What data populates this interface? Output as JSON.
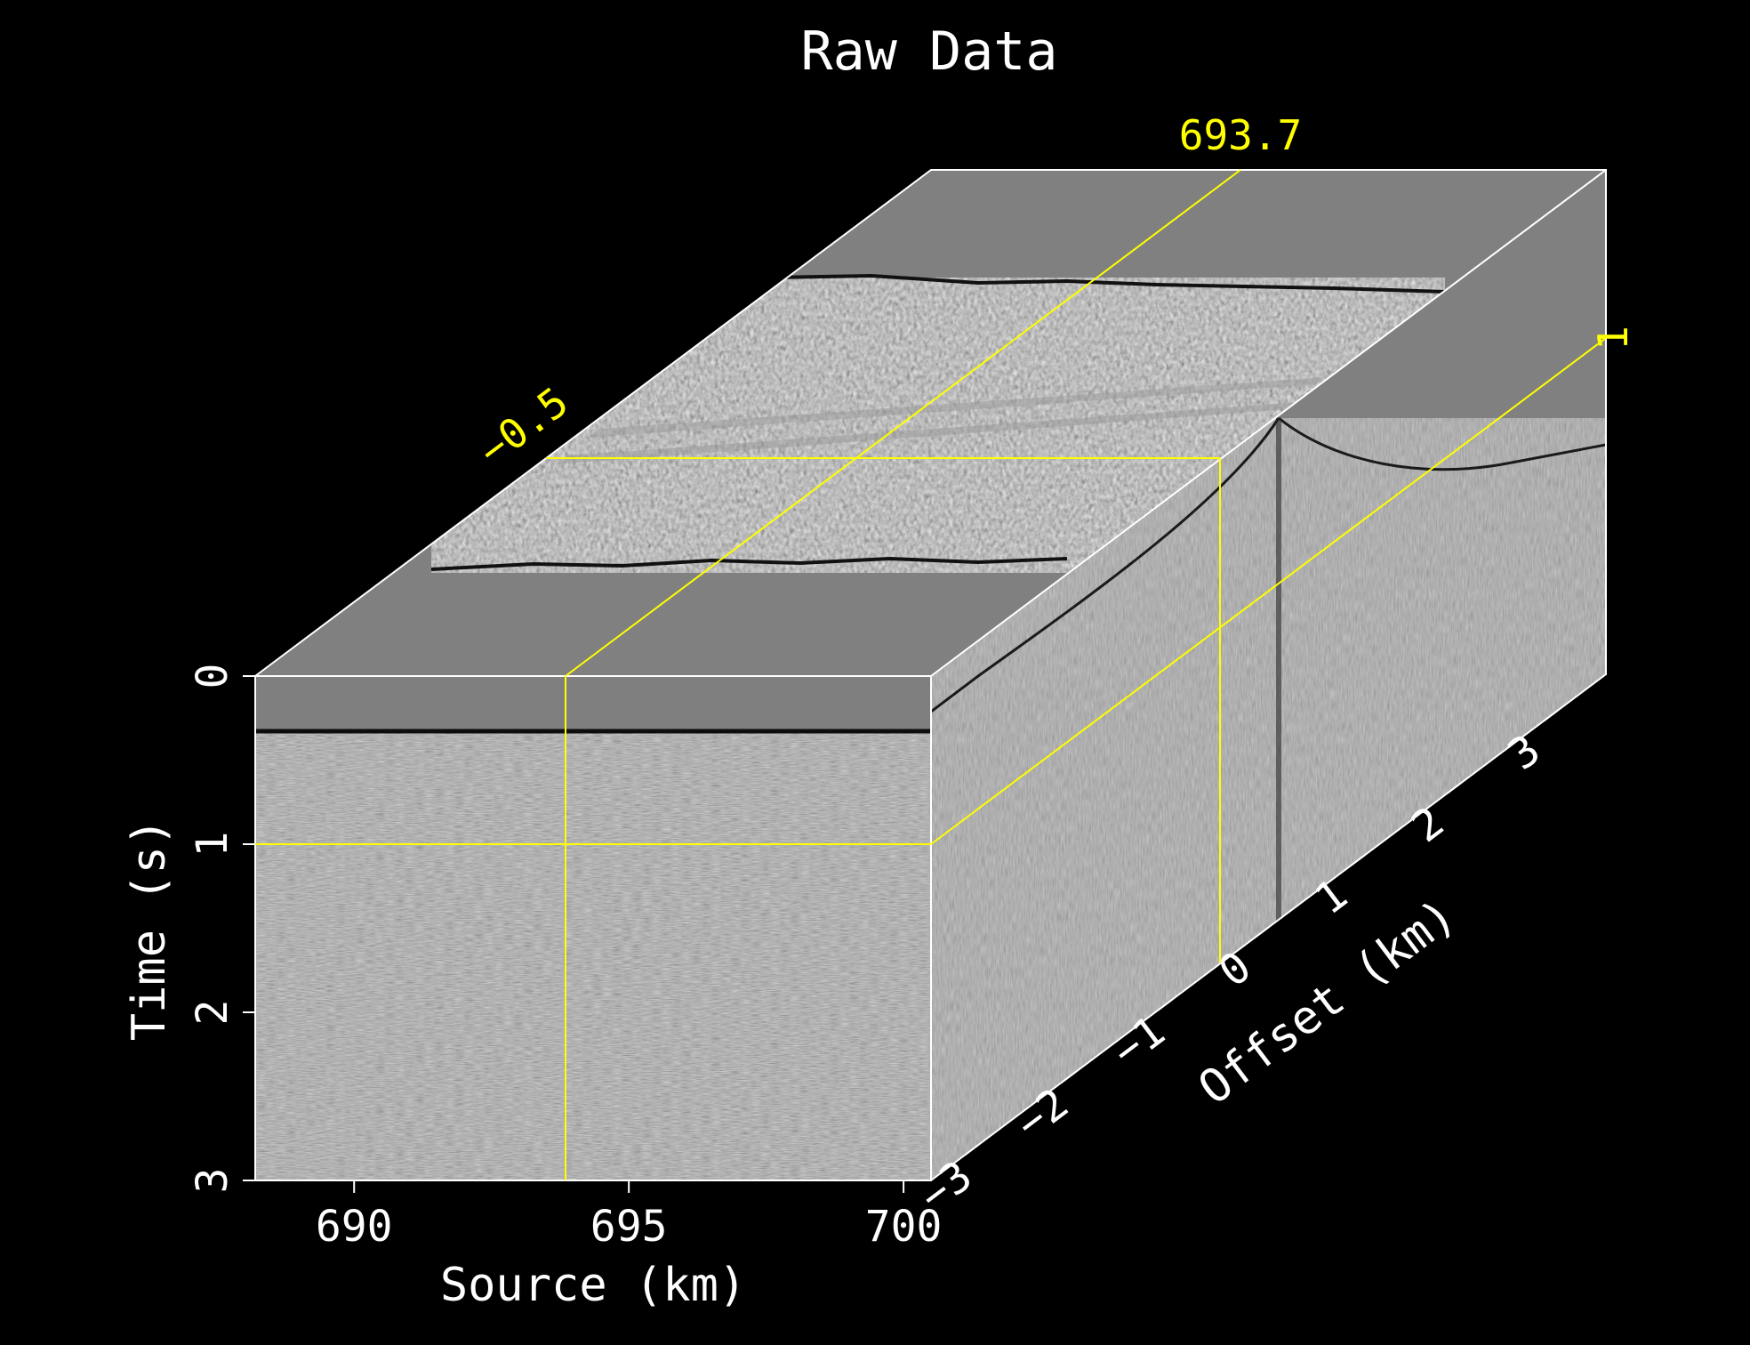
{
  "chart_data": {
    "type": "heatmap",
    "title": "Raw Data",
    "xlabel": "Source (km)",
    "ylabel": "Time (s)",
    "zlabel": "Offset (km)",
    "x_ticks": [
      690,
      695,
      700
    ],
    "y_ticks": [
      0,
      1,
      2,
      3
    ],
    "z_ticks": [
      -3,
      -2,
      -1,
      0,
      1,
      2,
      3
    ],
    "xlim": [
      688.2,
      700.5
    ],
    "ylim": [
      0,
      3
    ],
    "zlim": [
      -3.5,
      3.5
    ],
    "slices": {
      "source": 693.7,
      "time": 1,
      "offset": -0.5
    },
    "slice_labels": {
      "source": "693.7",
      "time": "1",
      "offset": "−0.5"
    },
    "colormap": "gray",
    "colors": {
      "background": "#000000",
      "frame": "#ffffff",
      "slice_lines": "#ffff00",
      "text": "#ffffff",
      "slice_text": "#ffff00"
    },
    "features": {
      "water_bottom_time_s": 0.35,
      "top_face_reflector_bands": [
        "−1.0 to 0.8 km offset",
        "strong events near 0 km"
      ],
      "hyperbola_apex_offset_km": 0
    }
  }
}
